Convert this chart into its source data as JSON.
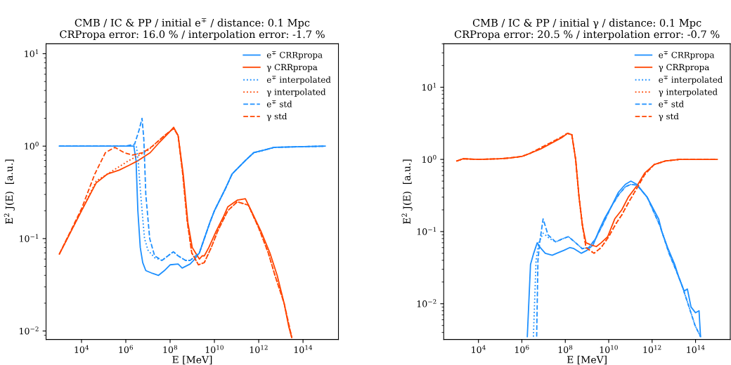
{
  "chart_data": [
    {
      "type": "line",
      "title": "CMB / IC & PP / initial e$^{∓}$ / distance: 0.1 Mpc\nCRPropa error: 16.0 % / interpolation error: -1.7 %",
      "xlabel": "E [MeV]",
      "ylabel": "E$^{2}$ J(E)  [a.u.]",
      "log": "xy",
      "grid": false,
      "legend": "top right",
      "xlim": [
        251,
        3980000000000000.0
      ],
      "ylim": [
        0.0081,
        12.8
      ],
      "xticks": [
        {
          "value": 10000.0,
          "label": "10$^{4}$"
        },
        {
          "value": 1000000.0,
          "label": "10$^{6}$"
        },
        {
          "value": 100000000.0,
          "label": "10$^{8}$"
        },
        {
          "value": 10000000000.0,
          "label": "10$^{10}$"
        },
        {
          "value": 1000000000000.0,
          "label": "10$^{12}$"
        },
        {
          "value": 100000000000000.0,
          "label": "10$^{14}$"
        }
      ],
      "yticks": [
        {
          "value": 0.01,
          "label": "10$^{−2}$"
        },
        {
          "value": 0.1,
          "label": "10$^{−1}$"
        },
        {
          "value": 1,
          "label": "10$^{0}$"
        },
        {
          "value": 10,
          "label": "10$^{1}$"
        }
      ],
      "series": [
        {
          "name": "e$^{∓}$ CRRpropa",
          "color": "#1e90ff",
          "line_style": "solid",
          "x": [
            1000.0,
            10000.0,
            100000.0,
            1000000.0,
            2300000.0,
            2900000.0,
            3500000.0,
            4500000.0,
            5800000.0,
            8000000.0,
            16000000.0,
            30000000.0,
            55000000.0,
            100000000.0,
            230000000.0,
            350000000.0,
            800000000.0,
            1300000000.0,
            2100000000.0,
            3500000000.0,
            6300000000.0,
            10000000000.0,
            32000000000.0,
            63000000000.0,
            250000000000.0,
            600000000000.0,
            1600000000000.0,
            5000000000000.0,
            1000000000000000.0
          ],
          "values": [
            1.0,
            1.0,
            1.0,
            1.0,
            1.0,
            0.7,
            0.2,
            0.08,
            0.055,
            0.045,
            0.042,
            0.04,
            0.045,
            0.052,
            0.053,
            0.048,
            0.053,
            0.06,
            0.07,
            0.1,
            0.15,
            0.2,
            0.35,
            0.5,
            0.7,
            0.85,
            0.9,
            0.97,
            1.0
          ]
        },
        {
          "name": "γ CRRpropa",
          "color": "#ff4500",
          "line_style": "solid",
          "x": [
            1000.0,
            10000.0,
            46000.0,
            150000.0,
            500000.0,
            1400000.0,
            3700000.0,
            12600000.0,
            33000000.0,
            89000000.0,
            145000000.0,
            230000000.0,
            390000000.0,
            630000000.0,
            1000000000.0,
            1700000000.0,
            2100000000.0,
            2800000000.0,
            3500000000.0,
            5600000000.0,
            12000000000.0,
            25000000000.0,
            40000000000.0,
            107000000000.0,
            250000000000.0,
            460000000000.0,
            1260000000000.0,
            3200000000000.0,
            6800000000000.0,
            14000000000000.0,
            23000000000000.0,
            31000000000000.0
          ],
          "values": [
            0.068,
            0.2,
            0.4,
            0.5,
            0.55,
            0.62,
            0.7,
            0.85,
            1.1,
            1.4,
            1.6,
            1.3,
            0.5,
            0.15,
            0.08,
            0.065,
            0.06,
            0.065,
            0.065,
            0.08,
            0.12,
            0.17,
            0.22,
            0.26,
            0.27,
            0.2,
            0.12,
            0.07,
            0.04,
            0.02,
            0.011,
            0.0085
          ]
        },
        {
          "name": "e$^{∓}$ interpolated",
          "color": "#1e90ff",
          "line_style": "dotted",
          "x": [
            1000.0,
            1000000.0,
            3000000.0,
            3600000.0,
            5000000.0,
            7000000.0,
            10000000.0,
            20000000.0,
            43000000.0,
            140000000.0,
            230000000.0,
            500000000.0,
            800000000.0,
            2100000000.0,
            3500000000.0,
            6300000000.0,
            10000000000.0,
            32000000000.0,
            63000000000.0,
            250000000000.0,
            600000000000.0,
            1600000000000.0,
            5000000000000.0,
            1000000000000000.0
          ],
          "values": [
            1.0,
            1.0,
            1.0,
            0.7,
            0.25,
            0.1,
            0.075,
            0.062,
            0.058,
            0.072,
            0.065,
            0.058,
            0.058,
            0.07,
            0.1,
            0.15,
            0.2,
            0.35,
            0.5,
            0.7,
            0.85,
            0.9,
            0.97,
            1.0
          ]
        },
        {
          "name": "γ interpolated",
          "color": "#ff4500",
          "line_style": "dotted",
          "x": [
            1000.0,
            10000.0,
            46000.0,
            150000.0,
            500000.0,
            1400000.0,
            4000000.0,
            10000000.0,
            55000000.0,
            145000000.0,
            230000000.0,
            370000000.0,
            600000000.0,
            950000000.0,
            1900000000.0,
            3500000000.0,
            7200000000.0,
            14000000000.0,
            40000000000.0,
            107000000000.0,
            340000000000.0,
            1000000000000.0,
            2700000000000.0,
            5400000000000.0,
            14000000000000.0,
            31000000000000.0
          ],
          "values": [
            0.068,
            0.2,
            0.42,
            0.5,
            0.6,
            0.7,
            0.8,
            0.9,
            1.3,
            1.55,
            1.3,
            0.5,
            0.15,
            0.07,
            0.052,
            0.055,
            0.08,
            0.12,
            0.2,
            0.25,
            0.23,
            0.13,
            0.07,
            0.04,
            0.02,
            0.0085
          ]
        },
        {
          "name": "e$^{∓}$ std",
          "color": "#1e90ff",
          "line_style": "dashed",
          "x": [
            1000.0,
            1000000.0,
            2500000.0,
            4000000.0,
            5400000.0,
            6500000.0,
            8000000.0,
            12000000.0,
            20000000.0,
            43000000.0,
            140000000.0,
            230000000.0,
            500000000.0,
            800000000.0,
            2100000000.0,
            3500000000.0,
            6300000000.0,
            10000000000.0,
            32000000000.0,
            63000000000.0,
            250000000000.0,
            600000000000.0,
            1600000000000.0,
            5000000000000.0,
            1000000000000000.0
          ],
          "values": [
            1.0,
            1.0,
            1.05,
            1.5,
            2.0,
            1.2,
            0.3,
            0.1,
            0.065,
            0.058,
            0.072,
            0.065,
            0.058,
            0.058,
            0.07,
            0.1,
            0.15,
            0.2,
            0.35,
            0.5,
            0.7,
            0.85,
            0.9,
            0.97,
            1.0
          ]
        },
        {
          "name": "γ std",
          "color": "#ff4500",
          "line_style": "dashed",
          "x": [
            1000.0,
            10000.0,
            40000.0,
            120000.0,
            320000.0,
            850000.0,
            2000000.0,
            6000000.0,
            16000000.0,
            55000000.0,
            145000000.0,
            230000000.0,
            370000000.0,
            600000000.0,
            950000000.0,
            1900000000.0,
            3500000000.0,
            7200000000.0,
            14000000000.0,
            40000000000.0,
            107000000000.0,
            340000000000.0,
            1000000000000.0,
            2700000000000.0,
            5400000000000.0,
            14000000000000.0,
            31000000000000.0
          ],
          "values": [
            0.068,
            0.21,
            0.5,
            0.85,
            0.97,
            0.85,
            0.8,
            0.85,
            1.0,
            1.3,
            1.55,
            1.3,
            0.5,
            0.15,
            0.07,
            0.052,
            0.055,
            0.08,
            0.12,
            0.2,
            0.25,
            0.23,
            0.13,
            0.07,
            0.04,
            0.02,
            0.0085
          ]
        }
      ]
    },
    {
      "type": "line",
      "title": "CMB / IC & PP / initial γ / distance: 0.1 Mpc\nCRPropa error: 20.5 % / interpolation error: -0.7 %",
      "xlabel": "E [MeV]",
      "ylabel": "E$^{2}$ J(E)  [a.u.]",
      "log": "xy",
      "grid": false,
      "legend": "top right",
      "xlim": [
        251,
        3980000000000000.0
      ],
      "ylim": [
        0.0032,
        40
      ],
      "xticks": [
        {
          "value": 10000.0,
          "label": "10$^{4}$"
        },
        {
          "value": 1000000.0,
          "label": "10$^{6}$"
        },
        {
          "value": 100000000.0,
          "label": "10$^{8}$"
        },
        {
          "value": 10000000000.0,
          "label": "10$^{10}$"
        },
        {
          "value": 1000000000000.0,
          "label": "10$^{12}$"
        },
        {
          "value": 100000000000000.0,
          "label": "10$^{14}$"
        }
      ],
      "yticks": [
        {
          "value": 0.01,
          "label": "10$^{−2}$"
        },
        {
          "value": 0.1,
          "label": "10$^{−1}$"
        },
        {
          "value": 1,
          "label": "10$^{0}$"
        },
        {
          "value": 10,
          "label": "10$^{1}$"
        }
      ],
      "series": [
        {
          "name": "e$^{∓}$ CRRpropa",
          "color": "#1e90ff",
          "line_style": "solid",
          "x": [
            1780000.0,
            2500000.0,
            3500000.0,
            5100000.0,
            7000000.0,
            12000000.0,
            25000000.0,
            40000000.0,
            87000000.0,
            160000000.0,
            250000000.0,
            540000000.0,
            1000000000.0,
            1900000000.0,
            3400000000.0,
            6300000000.0,
            13000000000.0,
            28000000000.0,
            58000000000.0,
            105000000000.0,
            200000000000.0,
            590000000000.0,
            2000000000000.0,
            2800000000000.0,
            5200000000000.0,
            11000000000000.0,
            18000000000000.0,
            30000000000000.0,
            42000000000000.0,
            62000000000000.0,
            100000000000000.0,
            145000000000000.0,
            170000000000000.0
          ],
          "values": [
            0.0035,
            0.035,
            0.05,
            0.07,
            0.06,
            0.05,
            0.047,
            0.05,
            0.055,
            0.06,
            0.058,
            0.05,
            0.055,
            0.065,
            0.1,
            0.15,
            0.22,
            0.35,
            0.45,
            0.5,
            0.45,
            0.3,
            0.15,
            0.1,
            0.06,
            0.035,
            0.022,
            0.015,
            0.016,
            0.009,
            0.0075,
            0.008,
            0.0035
          ]
        },
        {
          "name": "γ CRRpropa",
          "color": "#ff4500",
          "line_style": "solid",
          "x": [
            1000.0,
            2000.0,
            10000.0,
            100000.0,
            300000.0,
            1000000.0,
            2200000.0,
            7400000.0,
            25000000.0,
            68000000.0,
            126000000.0,
            200000000.0,
            300000000.0,
            430000000.0,
            620000000.0,
            900000000.0,
            1600000000.0,
            2700000000.0,
            4500000000.0,
            9000000000.0,
            19000000000.0,
            40000000000.0,
            80000000000.0,
            220000000000.0,
            460000000000.0,
            1260000000000.0,
            4000000000000.0,
            18000000000000.0,
            1000000000000000.0
          ],
          "values": [
            0.95,
            1.02,
            1.0,
            1.02,
            1.05,
            1.1,
            1.2,
            1.4,
            1.7,
            2.0,
            2.3,
            2.2,
            1.0,
            0.3,
            0.12,
            0.07,
            0.065,
            0.062,
            0.07,
            0.085,
            0.15,
            0.2,
            0.3,
            0.45,
            0.65,
            0.85,
            0.95,
            1.0,
            1.0
          ]
        },
        {
          "name": "e$^{∓}$ interpolated",
          "color": "#1e90ff",
          "line_style": "dotted",
          "x": [
            3400000.0,
            4500000.0,
            6000000.0,
            9500000.0,
            19000000.0,
            36000000.0,
            80000000.0,
            140000000.0,
            300000000.0,
            600000000.0,
            1200000000.0,
            2500000000.0,
            5000000000.0,
            13000000000.0,
            30000000000.0,
            60000000000.0,
            105000000000.0,
            200000000000.0,
            590000000000.0,
            2300000000000.0,
            6000000000000.0,
            21000000000000.0,
            45000000000000.0,
            95000000000000.0,
            170000000000000.0
          ],
          "values": [
            0.0035,
            0.04,
            0.07,
            0.095,
            0.08,
            0.072,
            0.08,
            0.085,
            0.07,
            0.058,
            0.06,
            0.08,
            0.12,
            0.22,
            0.33,
            0.42,
            0.45,
            0.44,
            0.3,
            0.12,
            0.05,
            0.02,
            0.01,
            0.005,
            0.0035
          ]
        },
        {
          "name": "γ interpolated",
          "color": "#ff4500",
          "line_style": "dotted",
          "x": [
            1000.0,
            2000.0,
            10000.0,
            100000.0,
            300000.0,
            1000000.0,
            2200000.0,
            7400000.0,
            25000000.0,
            68000000.0,
            126000000.0,
            200000000.0,
            300000000.0,
            430000000.0,
            620000000.0,
            900000000.0,
            2100000000.0,
            4500000000.0,
            10000000000.0,
            22000000000.0,
            40000000000.0,
            80000000000.0,
            220000000000.0,
            460000000000.0,
            1260000000000.0,
            4000000000000.0,
            18000000000000.0,
            1000000000000000.0
          ],
          "values": [
            0.95,
            1.02,
            1.0,
            1.02,
            1.05,
            1.1,
            1.2,
            1.45,
            1.75,
            2.05,
            2.3,
            2.2,
            1.0,
            0.3,
            0.12,
            0.06,
            0.05,
            0.06,
            0.085,
            0.13,
            0.17,
            0.25,
            0.42,
            0.62,
            0.85,
            0.95,
            1.0,
            1.0
          ]
        },
        {
          "name": "e$^{∓}$ std",
          "color": "#1e90ff",
          "line_style": "dashed",
          "x": [
            4800000.0,
            5500000.0,
            6600000.0,
            9500000.0,
            16000000.0,
            36000000.0,
            80000000.0,
            140000000.0,
            300000000.0,
            600000000.0,
            1200000000.0,
            2500000000.0,
            5000000000.0,
            13000000000.0,
            30000000000.0,
            60000000000.0,
            105000000000.0,
            200000000000.0,
            590000000000.0,
            2300000000000.0,
            6000000000000.0,
            21000000000000.0,
            45000000000000.0,
            95000000000000.0,
            170000000000000.0
          ],
          "values": [
            0.0035,
            0.04,
            0.07,
            0.15,
            0.09,
            0.072,
            0.08,
            0.085,
            0.07,
            0.058,
            0.06,
            0.08,
            0.12,
            0.22,
            0.33,
            0.42,
            0.45,
            0.44,
            0.3,
            0.12,
            0.05,
            0.02,
            0.01,
            0.005,
            0.0035
          ]
        },
        {
          "name": "γ std",
          "color": "#ff4500",
          "line_style": "dashed",
          "x": [
            1000.0,
            2000.0,
            10000.0,
            100000.0,
            300000.0,
            1000000.0,
            2200000.0,
            7400000.0,
            25000000.0,
            68000000.0,
            126000000.0,
            200000000.0,
            300000000.0,
            430000000.0,
            620000000.0,
            900000000.0,
            2100000000.0,
            4500000000.0,
            10000000000.0,
            22000000000.0,
            40000000000.0,
            80000000000.0,
            220000000000.0,
            460000000000.0,
            1260000000000.0,
            4000000000000.0,
            18000000000000.0,
            1000000000000000.0
          ],
          "values": [
            0.95,
            1.02,
            1.0,
            1.02,
            1.05,
            1.1,
            1.2,
            1.45,
            1.75,
            2.05,
            2.3,
            2.2,
            1.0,
            0.3,
            0.12,
            0.06,
            0.05,
            0.06,
            0.085,
            0.13,
            0.17,
            0.25,
            0.42,
            0.62,
            0.85,
            0.95,
            1.0,
            1.0
          ]
        }
      ]
    }
  ]
}
